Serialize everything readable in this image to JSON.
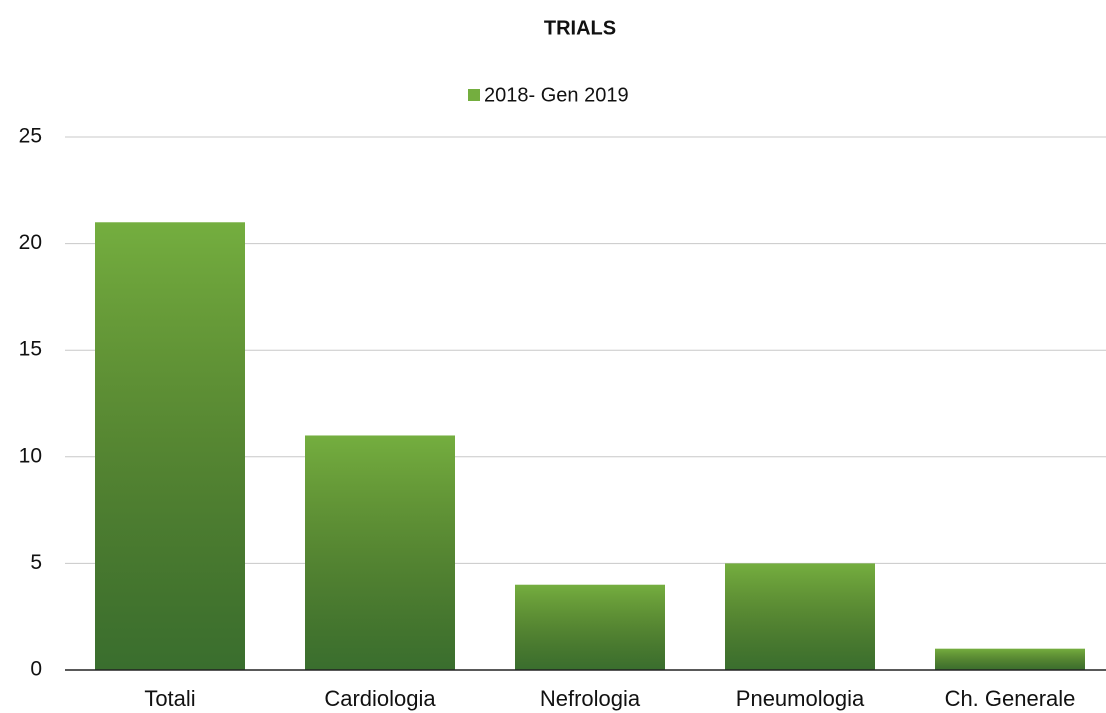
{
  "chart_data": {
    "type": "bar",
    "title": "TRIALS",
    "categories": [
      "Totali",
      "Cardiologia",
      "Nefrologia",
      "Pneumologia",
      "Ch. Generale"
    ],
    "series": [
      {
        "name": "2018- Gen 2019",
        "color": "#74ae3f",
        "values": [
          21,
          11,
          4,
          5,
          1
        ]
      }
    ],
    "ylim": [
      0,
      25
    ],
    "yticks": [
      0,
      5,
      10,
      15,
      20,
      25
    ],
    "grid": true,
    "legend": "top"
  }
}
